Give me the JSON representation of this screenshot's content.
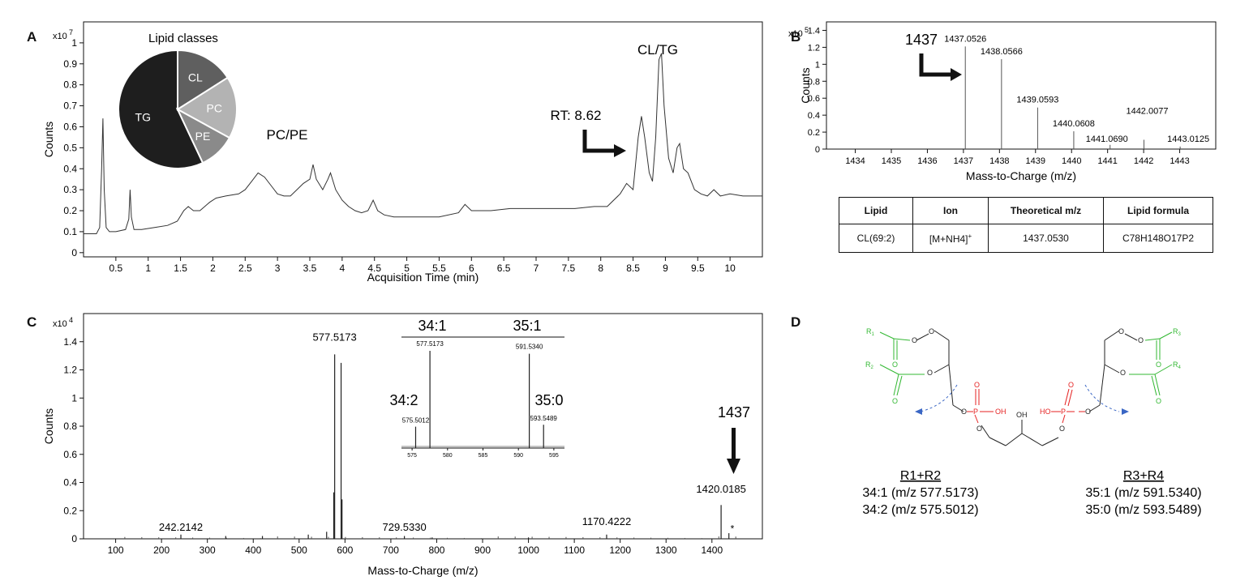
{
  "panels": {
    "a": "A",
    "b": "B",
    "c": "C",
    "d": "D"
  },
  "chart_data": [
    {
      "panel": "A",
      "type": "line",
      "xlabel": "Acquisition Time (min)",
      "ylabel": "Counts",
      "y_multiplier": "x10",
      "y_exponent": "7",
      "xlim": [
        0,
        10.5
      ],
      "ylim": [
        -0.02,
        1.1
      ],
      "x_ticks": [
        "0.5",
        "1",
        "1.5",
        "2",
        "2.5",
        "3",
        "3.5",
        "4",
        "4.5",
        "5",
        "5.5",
        "6",
        "6.5",
        "7",
        "7.5",
        "8",
        "8.5",
        "9",
        "9.5",
        "10"
      ],
      "y_ticks": [
        "0",
        "0.1",
        "0.2",
        "0.3",
        "0.4",
        "0.5",
        "0.6",
        "0.7",
        "0.8",
        "0.9",
        "1"
      ],
      "series": [
        {
          "x": [
            0.0,
            0.2,
            0.25,
            0.28,
            0.3,
            0.32,
            0.35,
            0.4,
            0.5,
            0.65,
            0.7,
            0.72,
            0.74,
            0.78,
            0.9,
            1.1,
            1.3,
            1.45,
            1.55,
            1.62,
            1.7,
            1.8,
            1.95,
            2.05,
            2.2,
            2.4,
            2.5,
            2.6,
            2.7,
            2.8,
            2.9,
            3.0,
            3.1,
            3.2,
            3.3,
            3.4,
            3.5,
            3.55,
            3.6,
            3.7,
            3.78,
            3.82,
            3.9,
            4.0,
            4.1,
            4.2,
            4.3,
            4.4,
            4.48,
            4.55,
            4.65,
            4.8,
            5.0,
            5.2,
            5.5,
            5.8,
            5.9,
            6.0,
            6.3,
            6.6,
            7.0,
            7.3,
            7.6,
            7.9,
            8.1,
            8.3,
            8.4,
            8.5,
            8.58,
            8.63,
            8.68,
            8.75,
            8.8,
            8.85,
            8.9,
            8.94,
            8.98,
            9.05,
            9.12,
            9.18,
            9.22,
            9.28,
            9.35,
            9.45,
            9.55,
            9.65,
            9.75,
            9.85,
            10.0,
            10.2,
            10.5
          ],
          "y": [
            0.09,
            0.09,
            0.12,
            0.4,
            0.64,
            0.3,
            0.12,
            0.1,
            0.1,
            0.11,
            0.16,
            0.3,
            0.17,
            0.11,
            0.11,
            0.12,
            0.13,
            0.15,
            0.2,
            0.22,
            0.2,
            0.2,
            0.24,
            0.26,
            0.27,
            0.28,
            0.3,
            0.34,
            0.38,
            0.36,
            0.32,
            0.28,
            0.27,
            0.27,
            0.3,
            0.33,
            0.35,
            0.42,
            0.35,
            0.3,
            0.35,
            0.38,
            0.3,
            0.25,
            0.22,
            0.2,
            0.19,
            0.2,
            0.25,
            0.2,
            0.18,
            0.17,
            0.17,
            0.17,
            0.17,
            0.19,
            0.23,
            0.2,
            0.2,
            0.21,
            0.21,
            0.21,
            0.21,
            0.22,
            0.22,
            0.28,
            0.33,
            0.3,
            0.55,
            0.65,
            0.55,
            0.38,
            0.34,
            0.55,
            0.92,
            0.95,
            0.7,
            0.45,
            0.38,
            0.5,
            0.52,
            0.4,
            0.38,
            0.3,
            0.28,
            0.27,
            0.3,
            0.27,
            0.28,
            0.27,
            0.27
          ]
        }
      ],
      "annotations": [
        "PC/PE",
        "CL/TG",
        "RT: 8.62"
      ]
    },
    {
      "panel": "A-inset",
      "type": "pie",
      "title": "Lipid classes",
      "categories": [
        "TG",
        "CL",
        "PC",
        "PE"
      ],
      "values": [
        57,
        16,
        17,
        10
      ],
      "colors": [
        "#1e1e1e",
        "#5f5f5f",
        "#b3b3b3",
        "#8a8a8a"
      ]
    },
    {
      "panel": "B",
      "type": "bar",
      "xlabel": "Mass-to-Charge (m/z)",
      "ylabel": "Counts",
      "y_multiplier": "x10",
      "y_exponent": "5",
      "xlim": [
        1433.2,
        1444.0
      ],
      "ylim": [
        0,
        1.5
      ],
      "x_ticks": [
        "1434",
        "1435",
        "1436",
        "1437",
        "1438",
        "1439",
        "1440",
        "1441",
        "1442",
        "1443"
      ],
      "y_ticks": [
        "0",
        "0.2",
        "0.4",
        "0.6",
        "0.8",
        "1",
        "1.2",
        "1.4"
      ],
      "x": [
        1437.0526,
        1438.0566,
        1439.0593,
        1440.0608,
        1441.069,
        1442.0077,
        1443.0125
      ],
      "values": [
        1.21,
        1.06,
        0.49,
        0.21,
        0.05,
        0.11,
        0.03
      ],
      "peak_labels": [
        "1437.0526",
        "1438.0566",
        "1439.0593",
        "1440.0608",
        "1441.0690",
        "1442.0077",
        "1443.0125"
      ],
      "annotations": [
        "1437"
      ]
    },
    {
      "panel": "C",
      "type": "bar",
      "xlabel": "Mass-to-Charge (m/z)",
      "ylabel": "Counts",
      "y_multiplier": "x10",
      "y_exponent": "4",
      "xlim": [
        30,
        1510
      ],
      "ylim": [
        0,
        1.6
      ],
      "x_ticks": [
        "100",
        "200",
        "300",
        "400",
        "500",
        "600",
        "700",
        "800",
        "900",
        "1000",
        "1100",
        "1200",
        "1300",
        "1400"
      ],
      "y_ticks": [
        "0",
        "0.2",
        "0.4",
        "0.6",
        "0.8",
        "1",
        "1.2",
        "1.4"
      ],
      "x": [
        242.2142,
        340,
        420,
        520,
        560,
        575.5012,
        577.5173,
        591.534,
        593.5489,
        729.533,
        790,
        1000,
        1170.4222,
        1420.0185,
        1437
      ],
      "values": [
        0.03,
        0.02,
        0.02,
        0.03,
        0.05,
        0.33,
        1.31,
        1.25,
        0.28,
        0.02,
        0.01,
        0.01,
        0.03,
        0.24,
        0.04
      ],
      "peak_labels": [
        "242.2142",
        "577.5173",
        "729.5330",
        "1170.4222",
        "1420.0185"
      ],
      "annotations": [
        "1437",
        "*"
      ]
    },
    {
      "panel": "C-inset",
      "type": "bar",
      "xlim": [
        573.5,
        596.5
      ],
      "x_ticks": [
        "575",
        "580",
        "585",
        "590",
        "595"
      ],
      "x": [
        575.5012,
        577.5173,
        591.534,
        593.5489
      ],
      "values": [
        0.22,
        1.0,
        0.97,
        0.24
      ],
      "peak_labels": [
        "575.5012",
        "577.5173",
        "591.5340",
        "593.5489"
      ],
      "group_labels": [
        "34:1",
        "35:1",
        "34:2",
        "35:0"
      ]
    }
  ],
  "table": {
    "headers": [
      "Lipid",
      "Ion",
      "Theoretical m/z",
      "Lipid formula"
    ],
    "row": {
      "lipid": "CL(69:2)",
      "ion": "[M+NH4]",
      "ion_sup": "+",
      "mz": "1437.0530",
      "formula": "C78H148O17P2"
    }
  },
  "structure": {
    "r1": "R",
    "r1_sub": "1",
    "r2": "R",
    "r2_sub": "2",
    "r3": "R",
    "r3_sub": "3",
    "r4": "R",
    "r4_sub": "4",
    "o": "O",
    "p": "P",
    "oh": "OH",
    "ho": "HO",
    "left_head": "R1+R2",
    "left_1": "34:1 (m/z 577.5173)",
    "left_2": "34:2 (m/z 575.5012)",
    "right_head": "R3+R4",
    "right_1": "35:1 (m/z 591.5340)",
    "right_2": "35:0 (m/z 593.5489)",
    "colors": {
      "chain": "#33b833",
      "phosphate": "#e52222",
      "backbone": "#222222",
      "cleave": "#3a66c4"
    }
  }
}
